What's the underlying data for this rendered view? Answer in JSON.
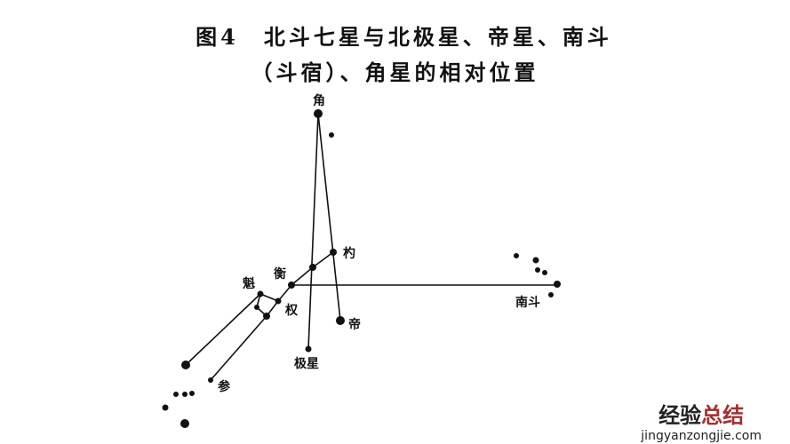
{
  "title": {
    "line1": "图4　北斗七星与北极星、帝星、南斗",
    "line2": "（斗宿）、角星的相对位置"
  },
  "labels": {
    "jiao": "角",
    "shao": "杓",
    "heng": "衡",
    "kui": "魁",
    "quan": "权",
    "di": "帝",
    "jixing": "极星",
    "nandou": "南斗",
    "shen": "参"
  },
  "watermark": {
    "text_dark": "经验",
    "text_red": "总结",
    "url": "jingyanzongjie.com"
  },
  "colors": {
    "ink": "#111111",
    "watermark_red": "#a3302e"
  }
}
